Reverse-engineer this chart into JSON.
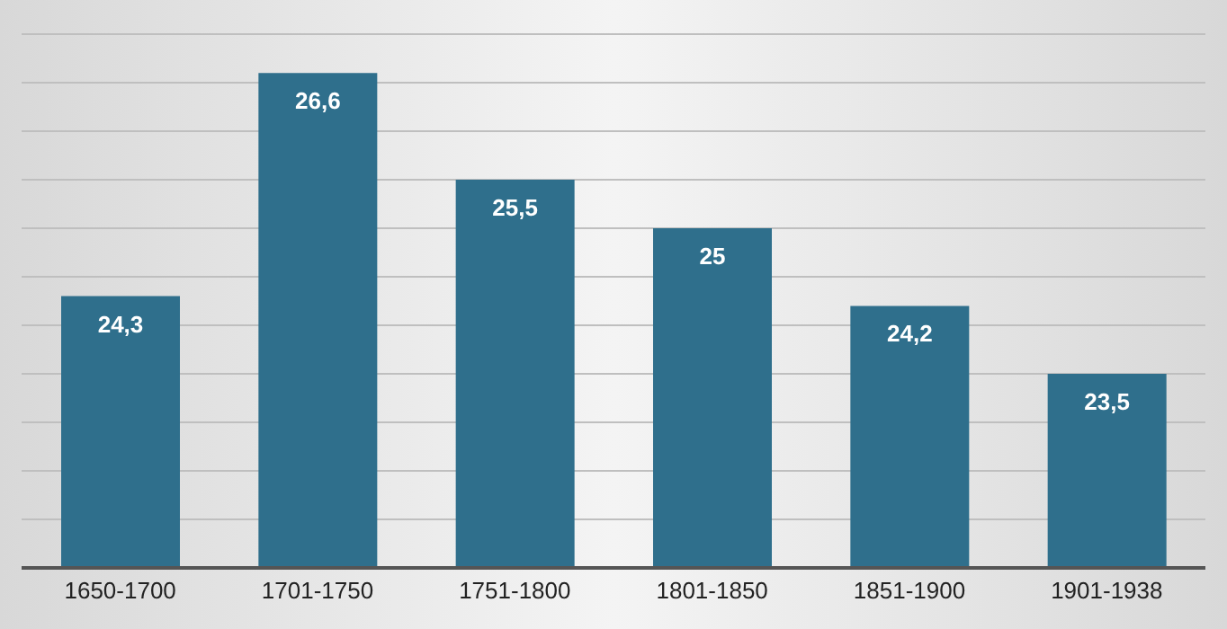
{
  "chart_data": {
    "type": "bar",
    "categories": [
      "1650-1700",
      "1701-1750",
      "1751-1800",
      "1801-1850",
      "1851-1900",
      "1901-1938"
    ],
    "values": [
      24.3,
      26.6,
      25.5,
      25,
      24.2,
      23.5
    ],
    "value_labels": [
      "24,3",
      "26,6",
      "25,5",
      "25",
      "24,2",
      "23,5"
    ],
    "color": "#2f6f8c",
    "ylim": [
      21.5,
      27
    ],
    "yticks": [
      {
        "value": 21.5,
        "label": null
      },
      {
        "value": 22,
        "label": null
      },
      {
        "value": 22.5,
        "label": null
      },
      {
        "value": 23,
        "label": null
      },
      {
        "value": 23.5,
        "label": null
      },
      {
        "value": 24,
        "label": null
      },
      {
        "value": 24.5,
        "label": null
      },
      {
        "value": 25,
        "label": null
      },
      {
        "value": 25.5,
        "label": null
      },
      {
        "value": 26,
        "label": null
      },
      {
        "value": 26.5,
        "label": null
      },
      {
        "value": 27,
        "label": null
      }
    ],
    "grid": "y",
    "tick_labels": "x"
  }
}
